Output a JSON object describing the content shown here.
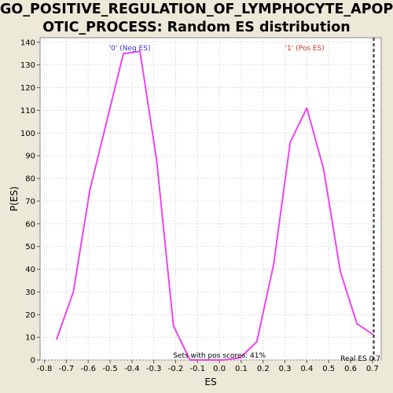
{
  "title_line1": "GO_POSITIVE_REGULATION_OF_LYMPHOCYTE_APOPT",
  "title_line2": "OTIC_PROCESS: Random ES distribution",
  "chart_data": {
    "type": "line",
    "xlabel": "ES",
    "ylabel": "P(ES)",
    "xlim": [
      -0.82,
      0.74
    ],
    "ylim": [
      0,
      142
    ],
    "xticks": [
      -0.8,
      -0.7,
      -0.6,
      -0.5,
      -0.4,
      -0.3,
      -0.2,
      -0.1,
      0.0,
      0.1,
      0.2,
      0.3,
      0.4,
      0.5,
      0.6,
      0.7
    ],
    "xtick_labels": [
      "-0.8",
      "-0.7",
      "-0.6",
      "-0.5",
      "-0.4",
      "-0.3",
      "-0.2",
      "-0.1",
      "0.0",
      "0.1",
      "0.2",
      "0.3",
      "0.4",
      "0.5",
      "0.6",
      "0.7"
    ],
    "yticks": [
      0,
      10,
      20,
      30,
      40,
      50,
      60,
      70,
      80,
      90,
      100,
      110,
      120,
      130,
      140
    ],
    "grid": true,
    "series": [
      {
        "color": "#ee44ee",
        "x": [
          -0.745,
          -0.668,
          -0.592,
          -0.439,
          -0.363,
          -0.287,
          -0.21,
          -0.134,
          -0.058,
          0.019,
          0.095,
          0.171,
          0.248,
          0.324,
          0.4,
          0.477,
          0.553,
          0.629,
          0.706
        ],
        "y": [
          9,
          30,
          75,
          135,
          136,
          88,
          15,
          0,
          0,
          0,
          1,
          8,
          42,
          96,
          111,
          84,
          39,
          16,
          11
        ]
      }
    ],
    "annotations": {
      "neg_label": "'0' (Neg ES)",
      "neg_color": "#3333cc",
      "pos_label": "'1' (Pos ES)",
      "pos_color": "#cc3333",
      "pos_scores_text": "Sets with pos scores: 41%",
      "real_es_text": "Real ES 0.7",
      "real_es_value": 0.706
    }
  }
}
